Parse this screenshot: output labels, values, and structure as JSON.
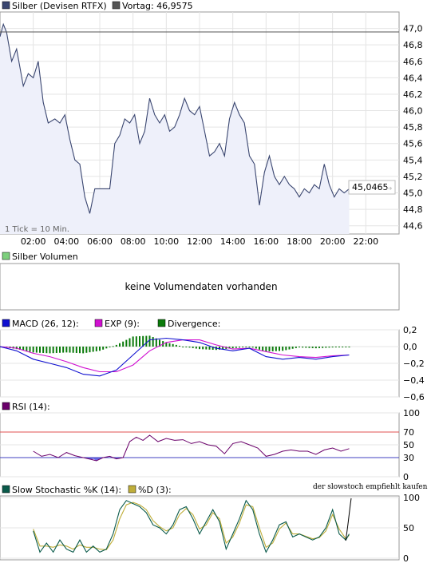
{
  "colors": {
    "silver_line": "#3a4670",
    "silver_fill": "#eef0fa",
    "prev_close": "#555555",
    "volume_legend": "#7ccf7c",
    "macd": "#1010d0",
    "exp": "#d010d0",
    "divergence": "#0a7a0a",
    "rsi": "#6a006a",
    "rsi_70": "#e05050",
    "rsi_30": "#4040c0",
    "stoch_k": "#0a5a4a",
    "stoch_d": "#bfae3a"
  },
  "price_panel": {
    "legend_silver": "Silber (Devisen RTFX)",
    "legend_prev": "Vortag: 46,9575",
    "last_value": "45,0465",
    "tick_note": "1 Tick = 10 Min."
  },
  "volume_panel": {
    "legend": "Silber Volumen",
    "message": "keine Volumendaten vorhanden"
  },
  "macd_panel": {
    "legend_macd": "MACD (26, 12):",
    "legend_exp": "EXP (9):",
    "legend_div": "Divergence:"
  },
  "rsi_panel": {
    "legend": "RSI (14):"
  },
  "stoch_panel": {
    "legend_k": "Slow Stochastic %K (14):",
    "legend_d": "%D (3):",
    "annotation": "der slowstoch empfiehlt kaufen"
  },
  "chart_data": [
    {
      "type": "line",
      "name": "price",
      "x_ticks": [
        "02:00",
        "04:00",
        "06:00",
        "08:00",
        "10:00",
        "12:00",
        "14:00",
        "16:00",
        "18:00",
        "20:00",
        "22:00"
      ],
      "y_ticks": [
        "47,0",
        "46,8",
        "46,6",
        "46,4",
        "46,2",
        "46,0",
        "45,8",
        "45,6",
        "45,4",
        "45,2",
        "45,0",
        "44,8",
        "44,6"
      ],
      "ylim": [
        44.5,
        47.2
      ],
      "xlim": [
        0,
        24
      ],
      "prev_close": 46.9575,
      "series": [
        {
          "x": [
            0,
            0.2,
            0.4,
            0.7,
            1.0,
            1.4,
            1.7,
            2.0,
            2.3,
            2.6,
            2.9,
            3.3,
            3.6,
            3.9,
            4.2,
            4.5,
            4.8,
            5.1,
            5.4,
            5.7,
            6.0,
            6.3,
            6.6,
            6.9,
            7.2,
            7.5,
            7.8,
            8.1,
            8.4,
            8.7,
            9.0,
            9.3,
            9.6,
            9.9,
            10.2,
            10.5,
            10.8,
            11.1,
            11.4,
            11.7,
            12.0,
            12.3,
            12.6,
            12.9,
            13.2,
            13.5,
            13.8,
            14.1,
            14.4,
            14.7,
            15.0,
            15.3,
            15.6,
            15.9,
            16.2,
            16.5,
            16.8,
            17.1,
            17.4,
            17.7,
            18.0,
            18.3,
            18.6,
            18.9,
            19.2,
            19.5,
            19.8,
            20.1,
            20.4,
            20.7,
            21.0
          ],
          "y": [
            46.9,
            47.05,
            46.95,
            46.6,
            46.75,
            46.3,
            46.45,
            46.4,
            46.6,
            46.1,
            45.85,
            45.9,
            45.85,
            45.95,
            45.65,
            45.4,
            45.35,
            44.95,
            44.75,
            45.05,
            45.05,
            45.05,
            45.05,
            45.6,
            45.7,
            45.9,
            45.85,
            45.95,
            45.6,
            45.75,
            46.15,
            45.95,
            45.85,
            45.95,
            45.75,
            45.8,
            45.95,
            46.15,
            46.0,
            45.95,
            46.05,
            45.75,
            45.45,
            45.5,
            45.6,
            45.45,
            45.9,
            46.1,
            45.95,
            45.85,
            45.45,
            45.35,
            44.85,
            45.25,
            45.45,
            45.2,
            45.1,
            45.2,
            45.1,
            45.05,
            44.95,
            45.05,
            45.0,
            45.1,
            45.05,
            45.35,
            45.1,
            44.95,
            45.05,
            45.0,
            45.05
          ]
        }
      ]
    },
    {
      "type": "line",
      "name": "macd",
      "y_ticks": [
        "0,2",
        "0,0",
        "−0,2",
        "−0,4",
        "−0,6"
      ],
      "ylim": [
        -0.6,
        0.2
      ],
      "xlim": [
        0,
        24
      ],
      "series": [
        {
          "name": "MACD (26, 12)",
          "x": [
            0,
            1,
            2,
            3,
            4,
            5,
            6,
            7,
            8,
            9,
            10,
            11,
            12,
            13,
            14,
            15,
            16,
            17,
            18,
            19,
            20,
            21
          ],
          "y": [
            0.0,
            -0.05,
            -0.15,
            -0.2,
            -0.25,
            -0.33,
            -0.35,
            -0.28,
            -0.1,
            0.08,
            0.1,
            0.08,
            0.05,
            -0.02,
            -0.05,
            -0.02,
            -0.12,
            -0.15,
            -0.13,
            -0.15,
            -0.12,
            -0.1
          ]
        },
        {
          "name": "EXP (9)",
          "x": [
            0,
            1,
            2,
            3,
            4,
            5,
            6,
            7,
            8,
            9,
            10,
            11,
            12,
            13,
            14,
            15,
            16,
            17,
            18,
            19,
            20,
            21
          ],
          "y": [
            0.0,
            -0.02,
            -0.08,
            -0.12,
            -0.18,
            -0.25,
            -0.3,
            -0.3,
            -0.22,
            -0.05,
            0.05,
            0.08,
            0.08,
            0.02,
            -0.03,
            -0.02,
            -0.06,
            -0.1,
            -0.12,
            -0.13,
            -0.11,
            -0.1
          ]
        },
        {
          "name": "Divergence",
          "x": [
            0,
            1,
            2,
            3,
            4,
            5,
            6,
            7,
            8,
            9,
            10,
            11,
            12,
            13,
            14,
            15,
            16,
            17,
            18,
            19,
            20,
            21
          ],
          "y": [
            0.0,
            -0.03,
            -0.07,
            -0.08,
            -0.07,
            -0.08,
            -0.05,
            0.02,
            0.12,
            0.13,
            0.05,
            0.0,
            -0.03,
            -0.04,
            -0.02,
            0.0,
            -0.06,
            -0.05,
            -0.01,
            -0.02,
            -0.01,
            0.0
          ]
        }
      ]
    },
    {
      "type": "line",
      "name": "rsi",
      "y_ticks": [
        "100",
        "70",
        "50",
        "30",
        "0"
      ],
      "ylim": [
        0,
        100
      ],
      "xlim": [
        0,
        24
      ],
      "series": [
        {
          "name": "RSI (14)",
          "x": [
            2.0,
            2.5,
            3.0,
            3.5,
            4.0,
            4.5,
            5.0,
            5.5,
            5.8,
            6.2,
            6.6,
            7.0,
            7.4,
            7.8,
            8.2,
            8.6,
            9.0,
            9.5,
            10.0,
            10.5,
            11.0,
            11.5,
            12.0,
            12.5,
            13.0,
            13.5,
            14.0,
            14.5,
            15.0,
            15.5,
            16.0,
            16.5,
            17.0,
            17.5,
            18.0,
            18.5,
            19.0,
            19.5,
            20.0,
            20.5,
            21.0
          ],
          "y": [
            40,
            32,
            35,
            30,
            38,
            33,
            30,
            27,
            25,
            30,
            32,
            28,
            30,
            55,
            62,
            57,
            65,
            55,
            60,
            57,
            58,
            52,
            55,
            50,
            48,
            36,
            52,
            55,
            50,
            45,
            32,
            35,
            40,
            42,
            40,
            40,
            35,
            42,
            45,
            40,
            44
          ]
        }
      ]
    },
    {
      "type": "line",
      "name": "stochastic",
      "y_ticks": [
        "100",
        "50",
        "0"
      ],
      "ylim": [
        0,
        100
      ],
      "xlim": [
        0,
        24
      ],
      "series": [
        {
          "name": "Slow Stochastic %K (14)",
          "x": [
            2.0,
            2.4,
            2.8,
            3.2,
            3.6,
            4.0,
            4.4,
            4.8,
            5.2,
            5.6,
            6.0,
            6.4,
            6.8,
            7.2,
            7.6,
            8.0,
            8.4,
            8.8,
            9.2,
            9.6,
            10.0,
            10.4,
            10.8,
            11.2,
            11.6,
            12.0,
            12.4,
            12.8,
            13.2,
            13.6,
            14.0,
            14.4,
            14.8,
            15.2,
            15.6,
            16.0,
            16.4,
            16.8,
            17.2,
            17.6,
            18.0,
            18.4,
            18.8,
            19.2,
            19.6,
            20.0,
            20.4,
            20.8,
            21.0
          ],
          "y": [
            45,
            10,
            25,
            10,
            30,
            15,
            10,
            30,
            10,
            20,
            10,
            15,
            40,
            80,
            95,
            90,
            85,
            75,
            55,
            50,
            40,
            55,
            80,
            85,
            65,
            40,
            60,
            80,
            60,
            15,
            40,
            65,
            95,
            80,
            40,
            10,
            30,
            55,
            60,
            35,
            40,
            35,
            30,
            35,
            50,
            80,
            40,
            30,
            40
          ]
        },
        {
          "name": "%D (3)",
          "x": [
            2.0,
            2.4,
            2.8,
            3.2,
            3.6,
            4.0,
            4.4,
            4.8,
            5.2,
            5.6,
            6.0,
            6.4,
            6.8,
            7.2,
            7.6,
            8.0,
            8.4,
            8.8,
            9.2,
            9.6,
            10.0,
            10.4,
            10.8,
            11.2,
            11.6,
            12.0,
            12.4,
            12.8,
            13.2,
            13.6,
            14.0,
            14.4,
            14.8,
            15.2,
            15.6,
            16.0,
            16.4,
            16.8,
            17.2,
            17.6,
            18.0,
            18.4,
            18.8,
            19.2,
            19.6,
            20.0,
            20.4,
            20.8,
            21.0
          ],
          "y": [
            48,
            20,
            20,
            18,
            22,
            20,
            15,
            22,
            18,
            18,
            15,
            14,
            30,
            65,
            88,
            92,
            88,
            80,
            62,
            52,
            45,
            50,
            72,
            82,
            72,
            48,
            55,
            75,
            65,
            25,
            35,
            58,
            88,
            85,
            50,
            18,
            25,
            48,
            58,
            40,
            40,
            36,
            32,
            34,
            45,
            72,
            48,
            32,
            38
          ]
        }
      ]
    }
  ]
}
